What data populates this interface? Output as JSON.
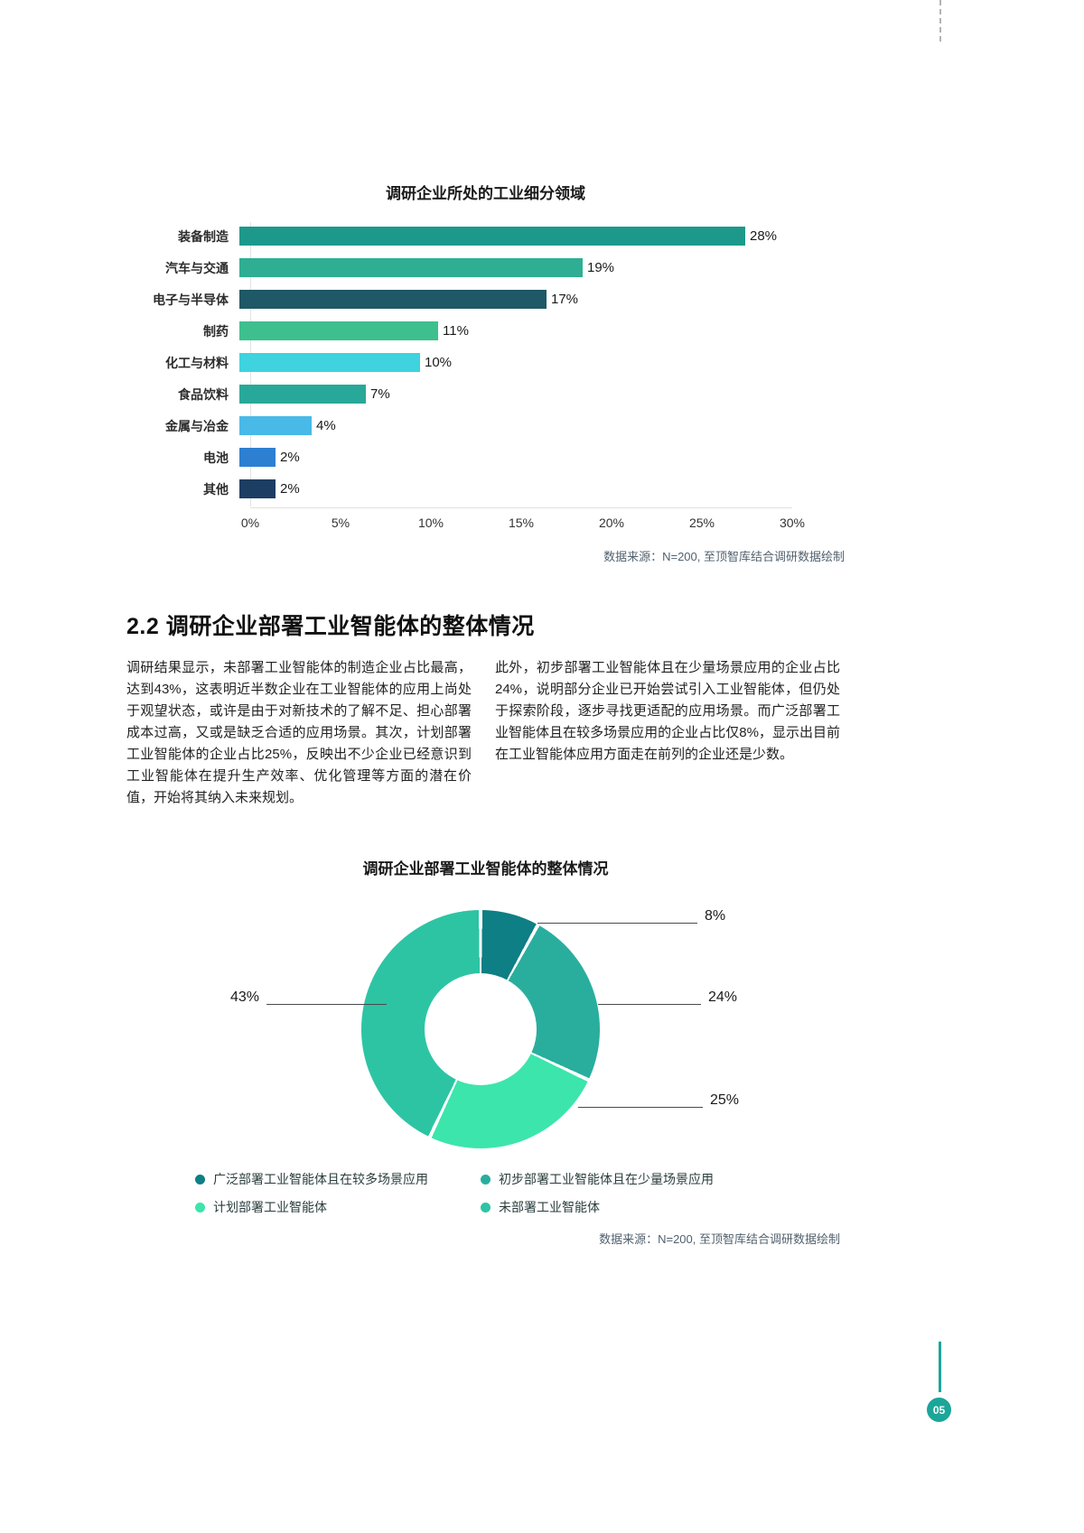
{
  "page": {
    "number": "05",
    "accent_color": "#1ba699"
  },
  "bar_chart": {
    "title": "调研企业所处的工业细分领域",
    "source": "数据来源：N=200, 至顶智库结合调研数据绘制",
    "max": 30,
    "ticks": [
      "0%",
      "5%",
      "10%",
      "15%",
      "20%",
      "25%",
      "30%"
    ],
    "items": [
      {
        "label": "装备制造",
        "value": 28,
        "display": "28%",
        "color": "#1d998b"
      },
      {
        "label": "汽车与交通",
        "value": 19,
        "display": "19%",
        "color": "#2fae93"
      },
      {
        "label": "电子与半导体",
        "value": 17,
        "display": "17%",
        "color": "#1f5866"
      },
      {
        "label": "制药",
        "value": 11,
        "display": "11%",
        "color": "#3ec08e"
      },
      {
        "label": "化工与材料",
        "value": 10,
        "display": "10%",
        "color": "#3ed3de"
      },
      {
        "label": "食品饮料",
        "value": 7,
        "display": "7%",
        "color": "#28a899"
      },
      {
        "label": "金属与冶金",
        "value": 4,
        "display": "4%",
        "color": "#49b9e8"
      },
      {
        "label": "电池",
        "value": 2,
        "display": "2%",
        "color": "#2d7fd2"
      },
      {
        "label": "其他",
        "value": 2,
        "display": "2%",
        "color": "#1c3e63"
      }
    ]
  },
  "section": {
    "heading": "2.2 调研企业部署工业智能体的整体情况",
    "col_left": "调研结果显示，未部署工业智能体的制造企业占比最高，达到43%，这表明近半数企业在工业智能体的应用上尚处于观望状态，或许是由于对新技术的了解不足、担心部署成本过高，又或是缺乏合适的应用场景。其次，计划部署工业智能体的企业占比25%，反映出不少企业已经意识到工业智能体在提升生产效率、优化管理等方面的潜在价值，开始将其纳入未来规划。",
    "col_right": "此外，初步部署工业智能体且在少量场景应用的企业占比24%，说明部分企业已开始尝试引入工业智能体，但仍处于探索阶段，逐步寻找更适配的应用场景。而广泛部署工业智能体且在较多场景应用的企业占比仅8%，显示出目前在工业智能体应用方面走在前列的企业还是少数。"
  },
  "donut_chart": {
    "title": "调研企业部署工业智能体的整体情况",
    "source": "数据来源：N=200, 至顶智库结合调研数据绘制",
    "slices": [
      {
        "label": "广泛部署工业智能体且在较多场景应用",
        "value": 8,
        "display": "8%",
        "color": "#0e7f84"
      },
      {
        "label": "初步部署工业智能体且在少量场景应用",
        "value": 24,
        "display": "24%",
        "color": "#29ae9e"
      },
      {
        "label": "计划部署工业智能体",
        "value": 25,
        "display": "25%",
        "color": "#3ce5ac"
      },
      {
        "label": "未部署工业智能体",
        "value": 43,
        "display": "43%",
        "color": "#2dc4a4"
      }
    ]
  },
  "chart_data": [
    {
      "type": "bar",
      "orientation": "horizontal",
      "title": "调研企业所处的工业细分领域",
      "categories": [
        "装备制造",
        "汽车与交通",
        "电子与半导体",
        "制药",
        "化工与材料",
        "食品饮料",
        "金属与冶金",
        "电池",
        "其他"
      ],
      "values": [
        28,
        19,
        17,
        11,
        10,
        7,
        4,
        2,
        2
      ],
      "xlabel": "",
      "ylabel": "",
      "xlim": [
        0,
        30
      ],
      "tick_labels": [
        "0%",
        "5%",
        "10%",
        "15%",
        "20%",
        "25%",
        "30%"
      ],
      "grid": false,
      "source": "数据来源：N=200, 至顶智库结合调研数据绘制"
    },
    {
      "type": "pie",
      "subtype": "donut",
      "title": "调研企业部署工业智能体的整体情况",
      "categories": [
        "广泛部署工业智能体且在较多场景应用",
        "初步部署工业智能体且在少量场景应用",
        "计划部署工业智能体",
        "未部署工业智能体"
      ],
      "values": [
        8,
        24,
        25,
        43
      ],
      "legend_position": "bottom",
      "source": "数据来源：N=200, 至顶智库结合调研数据绘制"
    }
  ]
}
